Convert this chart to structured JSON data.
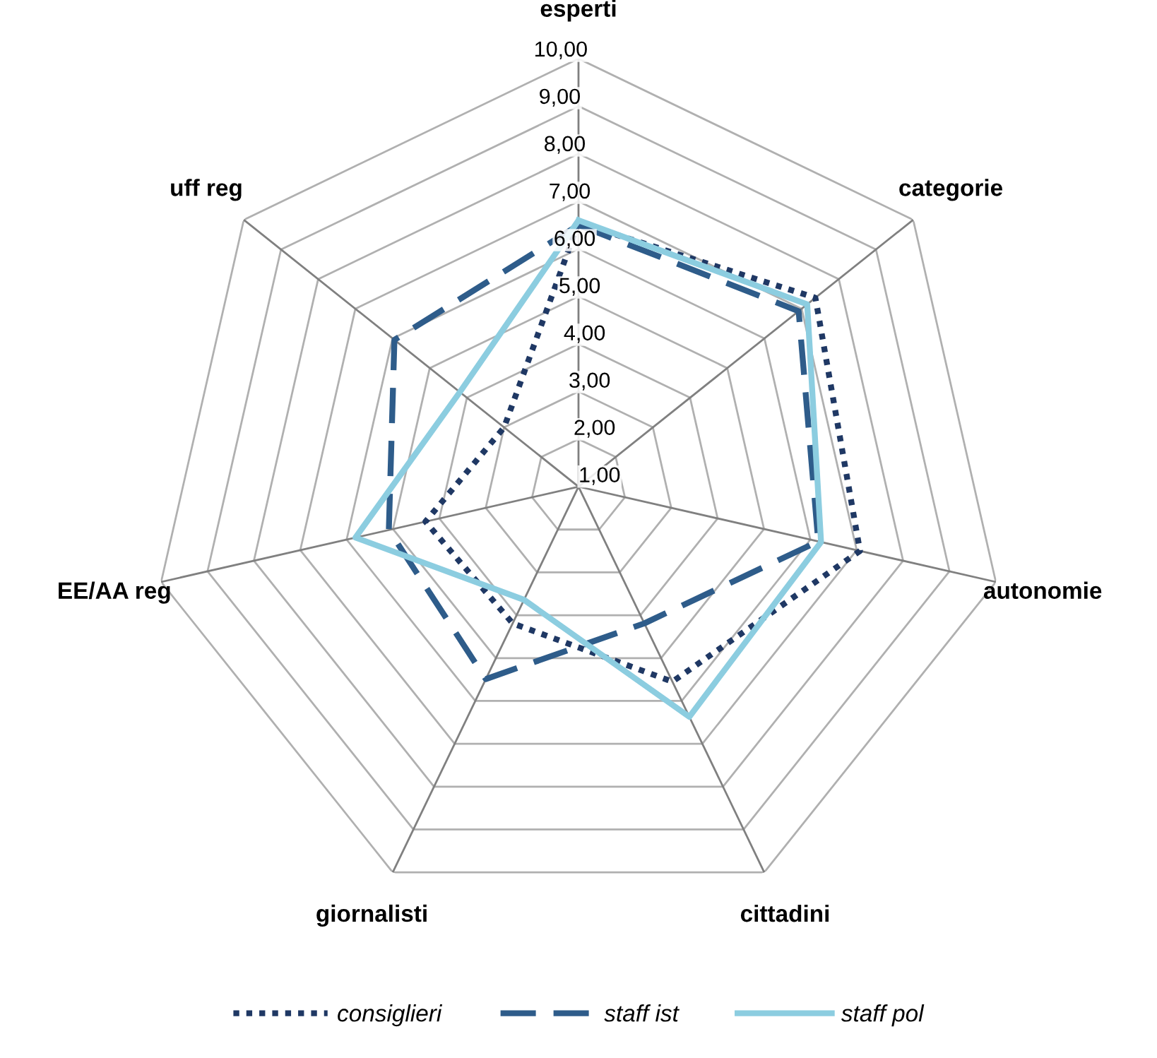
{
  "chart_data": {
    "type": "radar",
    "categories": [
      "esperti",
      "categorie",
      "autonomie",
      "cittadini",
      "giornalisti",
      "EE/AA reg",
      "uff reg"
    ],
    "series": [
      {
        "name": "consiglieri",
        "color": "#1f3864",
        "line_style": "dotted",
        "values": [
          6.55,
          7.37,
          7.07,
          5.55,
          4.19,
          4.3,
          3.0
        ]
      },
      {
        "name": "staff ist",
        "color": "#2e5c8a",
        "line_style": "dashed",
        "values": [
          6.5,
          6.92,
          6.17,
          4.19,
          5.49,
          5.09,
          5.95
        ]
      },
      {
        "name": "staff pol",
        "color": "#8ccde0",
        "line_style": "solid",
        "values": [
          6.6,
          7.15,
          6.23,
          6.37,
          3.64,
          5.81,
          4.19
        ]
      }
    ],
    "ylim": [
      1,
      10
    ],
    "yticks": [
      {
        "value": 1,
        "label": "1,00"
      },
      {
        "value": 2,
        "label": "2,00"
      },
      {
        "value": 3,
        "label": "3,00"
      },
      {
        "value": 4,
        "label": "4,00"
      },
      {
        "value": 5,
        "label": "5,00"
      },
      {
        "value": 6,
        "label": "6,00"
      },
      {
        "value": 7,
        "label": "7,00"
      },
      {
        "value": 8,
        "label": "8,00"
      },
      {
        "value": 9,
        "label": "9,00"
      },
      {
        "value": 10,
        "label": "10,00"
      }
    ],
    "grid": true,
    "legend": "bottom"
  }
}
